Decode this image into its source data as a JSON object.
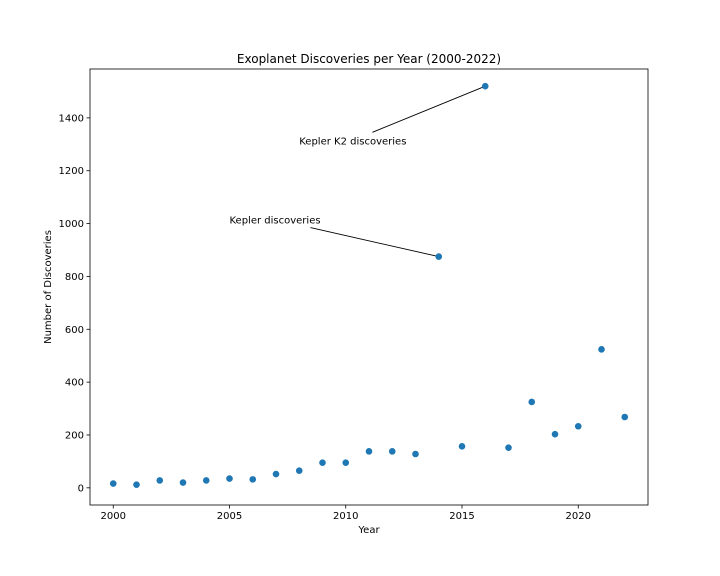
{
  "chart_data": {
    "type": "scatter",
    "title": "Exoplanet Discoveries per Year (2000-2022)",
    "xlabel": "Year",
    "ylabel": "Number of Discoveries",
    "xlim": [
      1999,
      2023
    ],
    "ylim": [
      -65,
      1585
    ],
    "xticks": [
      2000,
      2005,
      2010,
      2015,
      2020
    ],
    "yticks": [
      0,
      200,
      400,
      600,
      800,
      1000,
      1200,
      1400
    ],
    "grid": false,
    "point_color": "#1f77b4",
    "series": [
      {
        "x": [
          2000,
          2001,
          2002,
          2003,
          2004,
          2005,
          2006,
          2007,
          2008,
          2009,
          2010,
          2011,
          2012,
          2013,
          2014,
          2015,
          2016,
          2017,
          2018,
          2019,
          2020,
          2021,
          2022
        ],
        "y": [
          16,
          12,
          28,
          20,
          28,
          35,
          32,
          52,
          65,
          95,
          95,
          138,
          138,
          128,
          875,
          157,
          1520,
          152,
          325,
          203,
          233,
          524,
          268
        ]
      }
    ],
    "annotations": [
      {
        "text": "Kepler K2 discoveries",
        "point": [
          2016,
          1520
        ],
        "text_at": [
          2008,
          1300
        ]
      },
      {
        "text": "Kepler discoveries",
        "point": [
          2014,
          875
        ],
        "text_at": [
          2005,
          1000
        ]
      }
    ]
  }
}
